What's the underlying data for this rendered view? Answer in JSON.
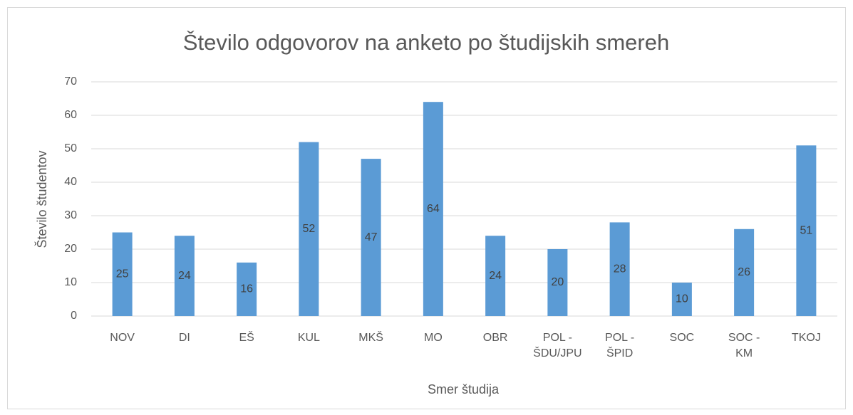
{
  "chart_data": {
    "type": "bar",
    "title": "Število odgovorov na anketo po študijskih smereh",
    "x_label": "Smer študija",
    "y_label": "Število študentov",
    "categories": [
      "NOV",
      "DI",
      "EŠ",
      "KUL",
      "MKŠ",
      "MO",
      "OBR",
      "POL - ŠDU/JPU",
      "POL - ŠPID",
      "SOC",
      "SOC - KM",
      "TKOJ"
    ],
    "values": [
      25,
      24,
      16,
      52,
      47,
      64,
      24,
      20,
      28,
      10,
      26,
      51
    ],
    "color": "#5b9bd5",
    "ylim": [
      0,
      70
    ],
    "yticks": [
      0,
      10,
      20,
      30,
      40,
      50,
      60,
      70
    ],
    "grid": true
  }
}
